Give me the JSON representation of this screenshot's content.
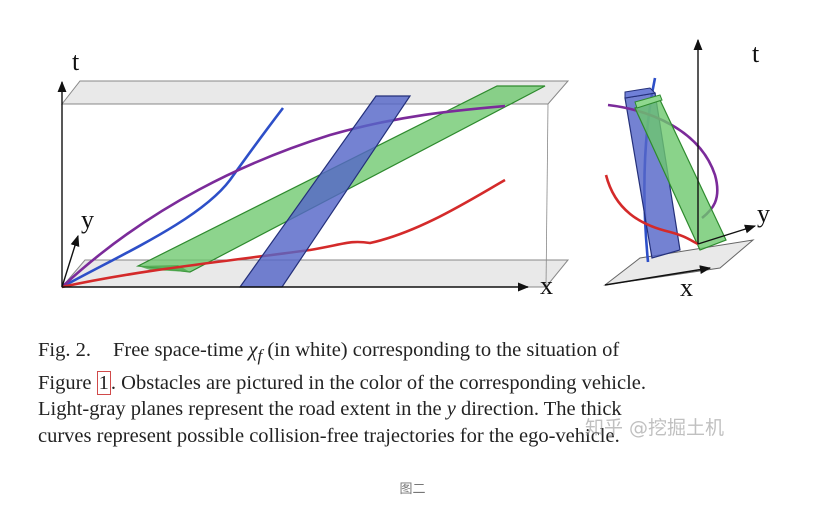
{
  "figure": {
    "left_panel": {
      "x_label": "x",
      "y_label": "y",
      "t_label": "t"
    },
    "right_panel": {
      "x_label": "x",
      "y_label": "y",
      "t_label": "t"
    }
  },
  "caption": {
    "fig_label": "Fig. 2.",
    "line1_text": "Free space-time ",
    "chi_symbol": "χ",
    "chi_subscript": "f",
    "line1_rest": " (in white) corresponding to the situation of",
    "line2_pre": "Figure ",
    "figure_ref": "1",
    "line2_rest": ". Obstacles are pictured in the color of the corresponding vehicle.",
    "line3_pre": "Light-gray planes represent the road extent in the ",
    "line3_var": "y",
    "line3_post": " direction. The thick",
    "line4": "curves represent possible collision-free trajectories for the ego-vehicle."
  },
  "watermark": "知乎 @挖掘土机",
  "sub_caption": "图二"
}
